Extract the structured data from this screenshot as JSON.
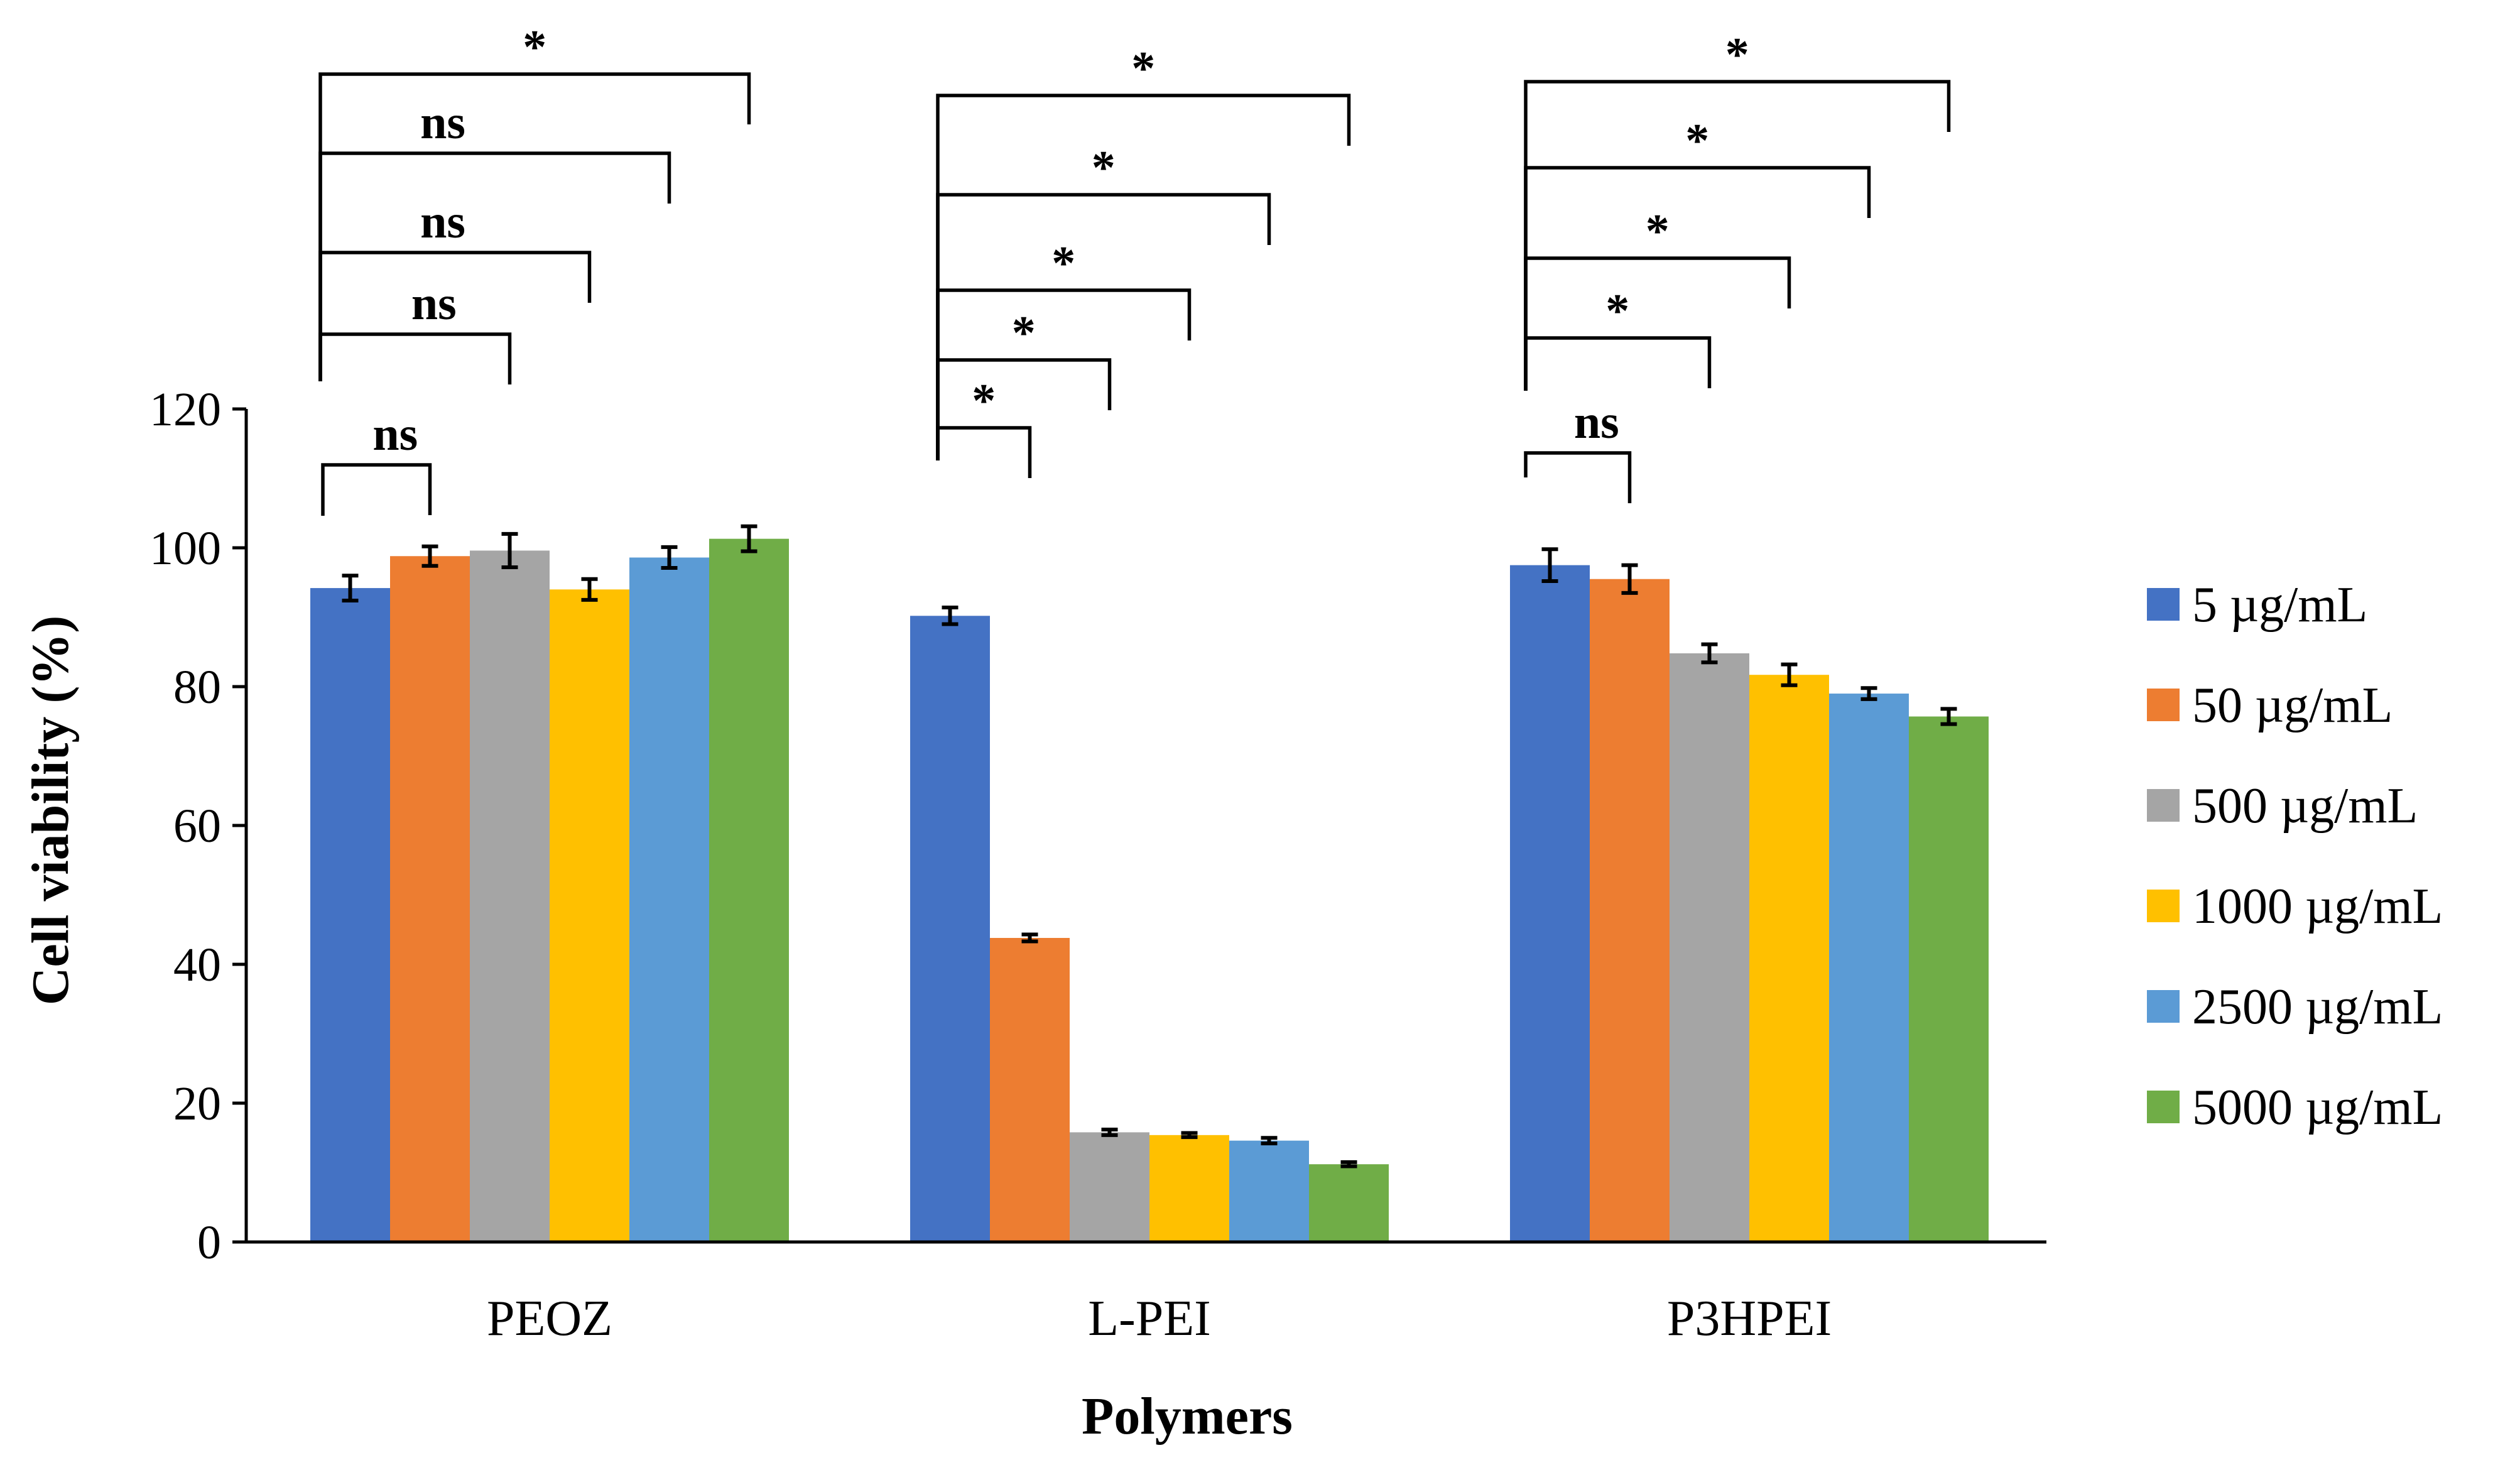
{
  "chart_data": {
    "type": "bar",
    "title": "",
    "xlabel": "Polymers",
    "ylabel": "Cell viability (%)",
    "ylim": [
      0,
      120
    ],
    "yticks": [
      0,
      20,
      40,
      60,
      80,
      100,
      120
    ],
    "grid": false,
    "legend_position": "right",
    "categories": [
      "PEOZ",
      "L-PEI",
      "P3HPEI"
    ],
    "series": [
      {
        "name": "5 µg/mL",
        "color": "#4472C4",
        "values": [
          94.2,
          90.2,
          97.5
        ],
        "errors": [
          1.8,
          1.2,
          2.3
        ]
      },
      {
        "name": "50 µg/mL",
        "color": "#ED7D31",
        "values": [
          98.8,
          43.8,
          95.5
        ],
        "errors": [
          1.4,
          0.5,
          2.0
        ]
      },
      {
        "name": "500 µg/mL",
        "color": "#A5A5A5",
        "values": [
          99.6,
          15.8,
          84.8
        ],
        "errors": [
          2.4,
          0.4,
          1.3
        ]
      },
      {
        "name": "1000 µg/mL",
        "color": "#FFC000",
        "values": [
          94.0,
          15.4,
          81.7
        ],
        "errors": [
          1.5,
          0.3,
          1.5
        ]
      },
      {
        "name": "2500 µg/mL",
        "color": "#5B9BD5",
        "values": [
          98.6,
          14.6,
          79.0
        ],
        "errors": [
          1.5,
          0.4,
          0.8
        ]
      },
      {
        "name": "5000 µg/mL",
        "color": "#70AD47",
        "values": [
          101.3,
          11.2,
          75.7
        ],
        "errors": [
          1.8,
          0.3,
          1.1
        ]
      }
    ],
    "significance": [
      {
        "category": "PEOZ",
        "comparisons": [
          {
            "from_series": 0,
            "to_series": 1,
            "label": "ns"
          },
          {
            "from_series": 0,
            "to_series": 2,
            "label": "ns"
          },
          {
            "from_series": 0,
            "to_series": 3,
            "label": "ns"
          },
          {
            "from_series": 0,
            "to_series": 4,
            "label": "ns"
          },
          {
            "from_series": 0,
            "to_series": 5,
            "label": "*"
          }
        ]
      },
      {
        "category": "L-PEI",
        "comparisons": [
          {
            "from_series": 0,
            "to_series": 1,
            "label": "*"
          },
          {
            "from_series": 0,
            "to_series": 2,
            "label": "*"
          },
          {
            "from_series": 0,
            "to_series": 3,
            "label": "*"
          },
          {
            "from_series": 0,
            "to_series": 4,
            "label": "*"
          },
          {
            "from_series": 0,
            "to_series": 5,
            "label": "*"
          }
        ]
      },
      {
        "category": "P3HPEI",
        "comparisons": [
          {
            "from_series": 0,
            "to_series": 1,
            "label": "ns"
          },
          {
            "from_series": 0,
            "to_series": 2,
            "label": "*"
          },
          {
            "from_series": 0,
            "to_series": 3,
            "label": "*"
          },
          {
            "from_series": 0,
            "to_series": 4,
            "label": "*"
          },
          {
            "from_series": 0,
            "to_series": 5,
            "label": "*"
          }
        ]
      }
    ]
  }
}
